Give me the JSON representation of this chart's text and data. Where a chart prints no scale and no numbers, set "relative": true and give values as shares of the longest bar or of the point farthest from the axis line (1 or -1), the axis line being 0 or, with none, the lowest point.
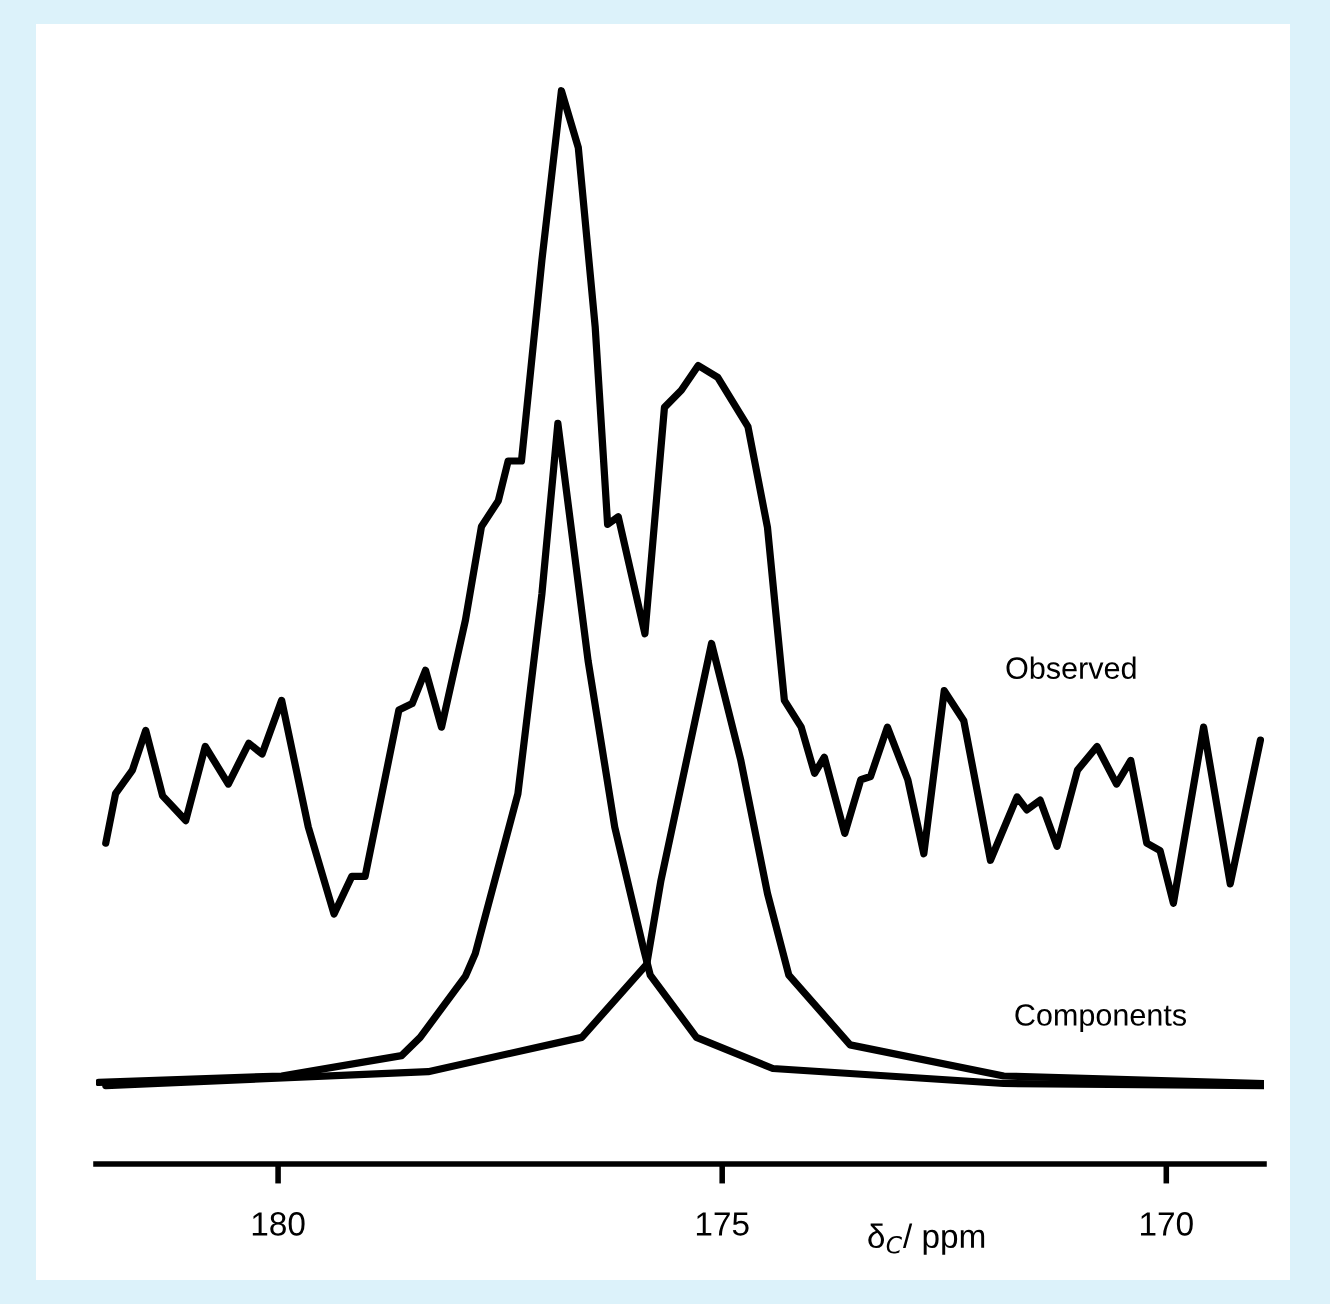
{
  "chart_data": {
    "type": "line",
    "relative": true,
    "xlabel": "δ$_{C}$/ ppm",
    "xlim": [
      182.05,
      168.9
    ],
    "xticks": [
      180,
      175,
      170
    ],
    "grid": false,
    "legend": false,
    "marker": "none",
    "line_style": "solid",
    "tick_labels": "x",
    "series": [
      {
        "name": "Observed",
        "color": "#000000",
        "x": [
          181.94,
          181.83,
          181.64,
          181.49,
          181.3,
          181.04,
          180.82,
          180.56,
          180.33,
          180.18,
          179.96,
          179.66,
          179.37,
          179.17,
          179.02,
          178.64,
          178.49,
          178.34,
          178.16,
          177.89,
          177.71,
          177.52,
          177.41,
          177.26,
          177.03,
          176.81,
          176.62,
          176.43,
          176.29,
          176.17,
          175.87,
          175.65,
          175.46,
          175.27,
          175.05,
          174.71,
          174.49,
          174.3,
          174.11,
          173.96,
          173.85,
          173.62,
          173.44,
          173.33,
          173.14,
          172.91,
          172.73,
          172.5,
          172.28,
          171.98,
          171.68,
          171.57,
          171.42,
          171.23,
          171.0,
          170.78,
          170.56,
          170.4,
          170.22,
          170.07,
          169.92,
          169.58,
          169.28,
          168.94
        ],
        "values": [
          0.299,
          0.345,
          0.367,
          0.404,
          0.343,
          0.32,
          0.389,
          0.354,
          0.392,
          0.382,
          0.432,
          0.314,
          0.233,
          0.268,
          0.268,
          0.423,
          0.429,
          0.46,
          0.407,
          0.507,
          0.594,
          0.618,
          0.655,
          0.655,
          0.842,
          1.0,
          0.947,
          0.78,
          0.596,
          0.603,
          0.494,
          0.705,
          0.721,
          0.744,
          0.733,
          0.687,
          0.593,
          0.432,
          0.407,
          0.364,
          0.379,
          0.308,
          0.358,
          0.361,
          0.407,
          0.358,
          0.289,
          0.441,
          0.413,
          0.283,
          0.342,
          0.33,
          0.339,
          0.296,
          0.367,
          0.389,
          0.354,
          0.376,
          0.299,
          0.292,
          0.243,
          0.407,
          0.261,
          0.395
        ]
      },
      {
        "name": "Components",
        "color": "#000000",
        "x": [
          182.02,
          179.96,
          178.61,
          178.4,
          177.89,
          177.78,
          177.3,
          177.03,
          176.85,
          176.51,
          176.21,
          175.89,
          175.81,
          175.29,
          174.43,
          171.83,
          168.9
        ],
        "values": [
          0.076,
          0.082,
          0.101,
          0.118,
          0.175,
          0.196,
          0.345,
          0.531,
          0.69,
          0.469,
          0.314,
          0.202,
          0.176,
          0.118,
          0.089,
          0.075,
          0.073
        ]
      },
      {
        "color": "#000000",
        "x": [
          181.94,
          178.31,
          176.58,
          175.85,
          175.69,
          175.12,
          174.79,
          174.49,
          174.25,
          173.56,
          171.83,
          168.9
        ],
        "values": [
          0.073,
          0.086,
          0.118,
          0.186,
          0.264,
          0.485,
          0.376,
          0.252,
          0.176,
          0.111,
          0.082,
          0.075
        ]
      }
    ]
  }
}
